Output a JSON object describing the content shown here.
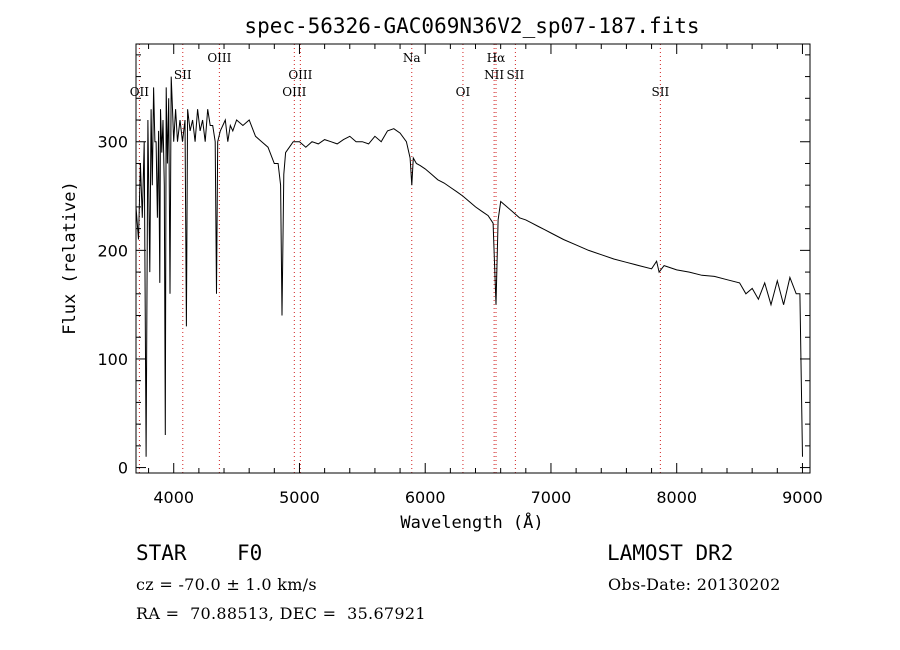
{
  "chart_data": {
    "type": "line",
    "title": "spec-56326-GAC069N36V2_sp07-187.fits",
    "xlabel": "Wavelength (Å)",
    "ylabel": "Flux (relative)",
    "xlim": [
      3700,
      9060
    ],
    "ylim": [
      -5,
      390
    ],
    "x_ticks": [
      4000,
      5000,
      6000,
      7000,
      8000,
      9000
    ],
    "y_ticks": [
      0,
      100,
      200,
      300
    ],
    "series": [
      {
        "x": [
          3700,
          3720,
          3735,
          3750,
          3765,
          3780,
          3795,
          3810,
          3820,
          3830,
          3840,
          3850,
          3860,
          3870,
          3880,
          3889,
          3895,
          3905,
          3915,
          3925,
          3933,
          3940,
          3950,
          3960,
          3970,
          3980,
          3990,
          4000,
          4015,
          4030,
          4050,
          4070,
          4090,
          4101,
          4110,
          4130,
          4150,
          4170,
          4190,
          4210,
          4230,
          4250,
          4270,
          4290,
          4310,
          4330,
          4340,
          4350,
          4370,
          4390,
          4410,
          4430,
          4450,
          4470,
          4500,
          4550,
          4600,
          4650,
          4700,
          4750,
          4800,
          4830,
          4850,
          4861,
          4875,
          4890,
          4920,
          4950,
          5000,
          5050,
          5100,
          5150,
          5200,
          5250,
          5300,
          5350,
          5400,
          5450,
          5500,
          5550,
          5600,
          5650,
          5700,
          5750,
          5800,
          5850,
          5880,
          5893,
          5905,
          5930,
          5960,
          6000,
          6050,
          6100,
          6150,
          6200,
          6250,
          6300,
          6350,
          6400,
          6450,
          6500,
          6540,
          6563,
          6580,
          6600,
          6650,
          6700,
          6750,
          6800,
          6850,
          6900,
          6950,
          7000,
          7100,
          7200,
          7300,
          7400,
          7500,
          7600,
          7700,
          7800,
          7840,
          7860,
          7900,
          8000,
          8100,
          8200,
          8300,
          8400,
          8500,
          8550,
          8600,
          8650,
          8700,
          8750,
          8800,
          8850,
          8900,
          8950,
          8980,
          9000
        ],
        "values": [
          240,
          210,
          280,
          230,
          300,
          10,
          320,
          180,
          330,
          260,
          350,
          300,
          300,
          230,
          310,
          170,
          330,
          290,
          320,
          260,
          30,
          350,
          280,
          340,
          160,
          360,
          330,
          300,
          330,
          300,
          320,
          300,
          320,
          130,
          330,
          310,
          320,
          300,
          330,
          310,
          320,
          300,
          330,
          315,
          315,
          300,
          160,
          300,
          310,
          315,
          320,
          300,
          315,
          310,
          320,
          315,
          320,
          305,
          300,
          295,
          280,
          280,
          260,
          140,
          270,
          290,
          295,
          300,
          300,
          295,
          300,
          298,
          302,
          300,
          298,
          302,
          305,
          300,
          300,
          298,
          305,
          300,
          310,
          312,
          308,
          300,
          285,
          260,
          285,
          280,
          278,
          275,
          270,
          265,
          262,
          258,
          254,
          250,
          245,
          240,
          236,
          232,
          225,
          150,
          228,
          245,
          240,
          235,
          230,
          228,
          225,
          222,
          219,
          216,
          210,
          205,
          200,
          196,
          192,
          189,
          186,
          183,
          190,
          180,
          186,
          182,
          180,
          177,
          176,
          173,
          170,
          160,
          165,
          155,
          170,
          150,
          172,
          150,
          175,
          160,
          160,
          10
        ]
      }
    ],
    "line_annotations": [
      {
        "x": 3727,
        "label": "OII",
        "row": 3
      },
      {
        "x": 4072,
        "label": "SII",
        "row": 2
      },
      {
        "x": 4363,
        "label": "OIII",
        "row": 1
      },
      {
        "x": 4959,
        "label": "OIII",
        "row": 3
      },
      {
        "x": 5007,
        "label": "OIII",
        "row": 2
      },
      {
        "x": 5893,
        "label": "Na",
        "row": 1
      },
      {
        "x": 6300,
        "label": "OI",
        "row": 3
      },
      {
        "x": 6548,
        "label": "NII",
        "row": 2
      },
      {
        "x": 6563,
        "label": "Hα",
        "row": 1
      },
      {
        "x": 6717,
        "label": "SII",
        "row": 2
      },
      {
        "x": 7870,
        "label": "SII",
        "row": 3
      }
    ],
    "grid": false,
    "legend": "none"
  },
  "info": {
    "object_class": "STAR",
    "subclass": "F0",
    "redshift_text": "cz = -70.0 ± 1.0 km/s",
    "coords_text": "RA =  70.88513, DEC =  35.67921",
    "survey": "LAMOST DR2",
    "obs_date_text": "Obs-Date: 20130202"
  },
  "colors": {
    "spectrum": "#000000",
    "line_markers": "#d02020",
    "axes": "#000000"
  }
}
